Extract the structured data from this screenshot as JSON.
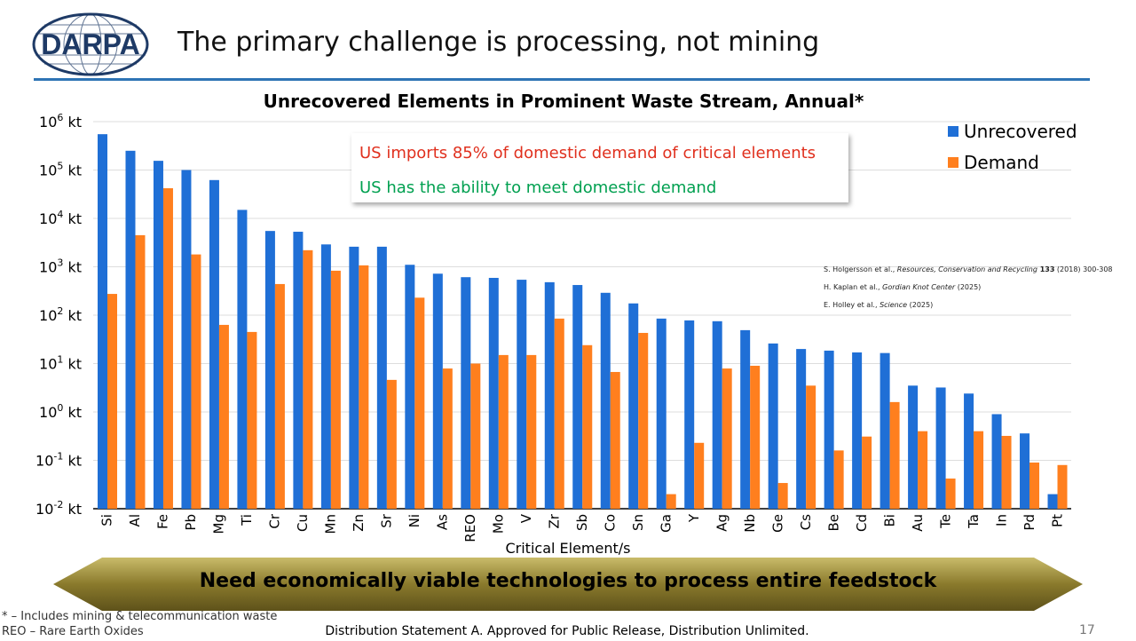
{
  "header": {
    "logo_text": "DARPA",
    "title": "The primary challenge is processing, not mining"
  },
  "callout": {
    "line1": "US imports 85% of domestic demand of critical elements",
    "line1_color": "#e0301e",
    "line2": "US has the ability to meet domestic demand",
    "line2_color": "#00a050"
  },
  "citations": [
    {
      "authors": "S. Holgersson et al., ",
      "source": "Resources, Conservation and Recycling",
      "extra": " 133",
      "tail": " (2018) 300-308"
    },
    {
      "authors": "H. Kaplan et al., ",
      "source": "Gordian Knot Center",
      "extra": "",
      "tail": " (2025)"
    },
    {
      "authors": "E. Holley et al., ",
      "source": "Science",
      "extra": "",
      "tail": " (2025)"
    }
  ],
  "banner": {
    "text": "Need economically viable technologies to process entire feedstock"
  },
  "footer": {
    "note1": "* – Includes mining & telecommunication waste",
    "note2": "REO – Rare Earth Oxides",
    "distribution": "Distribution Statement A. Approved for Public Release, Distribution Unlimited.",
    "page": "17"
  },
  "chart_data": {
    "type": "bar",
    "title": "Unrecovered Elements in Prominent Waste Stream, Annual*",
    "xlabel": "Critical Element/s",
    "ylabel": "",
    "yscale": "log",
    "ylim": [
      0.01,
      1000000
    ],
    "yticks": [
      "10^-2 kt",
      "10^-1 kt",
      "10^0 kt",
      "10^1 kt",
      "10^2 kt",
      "10^3 kt",
      "10^4 kt",
      "10^5 kt",
      "10^6 kt"
    ],
    "grid": true,
    "legend": "top-right",
    "categories": [
      "Si",
      "Al",
      "Fe",
      "Pb",
      "Mg",
      "Ti",
      "Cr",
      "Cu",
      "Mn",
      "Zn",
      "Sr",
      "Ni",
      "As",
      "REO",
      "Mo",
      "V",
      "Zr",
      "Sb",
      "Co",
      "Sn",
      "Ga",
      "Y",
      "Ag",
      "Nb",
      "Ge",
      "Cs",
      "Be",
      "Cd",
      "Bi",
      "Au",
      "Te",
      "Ta",
      "In",
      "Pd",
      "Pt"
    ],
    "series": [
      {
        "name": "Unrecovered",
        "color": "#1f6fd6",
        "values": [
          550000,
          250000,
          155000,
          100000,
          62000,
          15000,
          5500,
          5300,
          2900,
          2600,
          2600,
          1100,
          720,
          610,
          590,
          540,
          480,
          420,
          290,
          175,
          85,
          78,
          75,
          49,
          26,
          20,
          18.5,
          17,
          16.5,
          3.5,
          3.2,
          2.4,
          0.9,
          0.36,
          0.02
        ]
      },
      {
        "name": "Demand",
        "color": "#ff7f1e",
        "values": [
          275,
          4500,
          42000,
          1800,
          63,
          45,
          440,
          2200,
          830,
          1070,
          4.6,
          230,
          7.9,
          10,
          15,
          15,
          85,
          24,
          6.7,
          43,
          0.02,
          0.23,
          7.9,
          9,
          0.034,
          3.5,
          0.16,
          0.31,
          1.6,
          0.4,
          0.042,
          0.4,
          0.32,
          0.09,
          0.08
        ]
      }
    ]
  }
}
